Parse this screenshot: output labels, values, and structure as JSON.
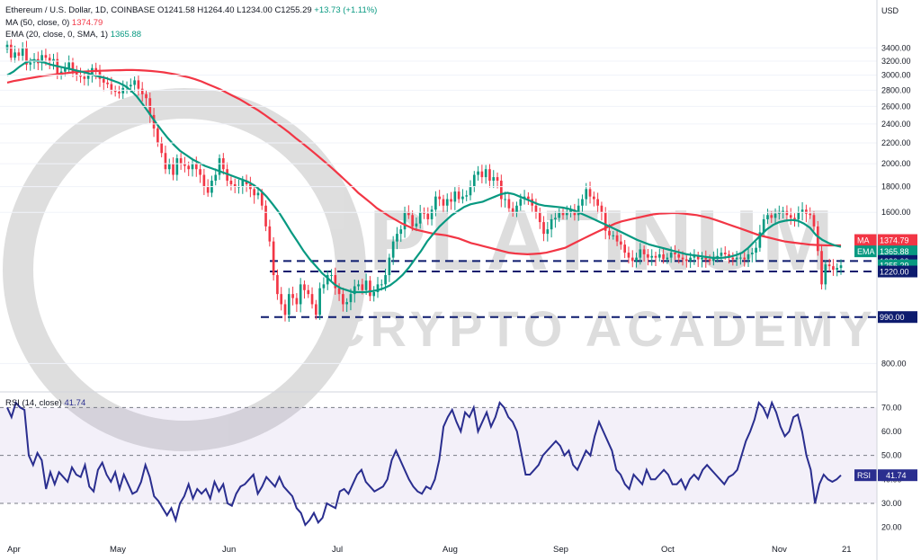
{
  "header": {
    "symbol_line": "Ethereum / U.S. Dollar, 1D, COINBASE",
    "open": "O1241.58",
    "high": "H1264.40",
    "low": "L1234.00",
    "close": "C1255.29",
    "change": "+13.73 (+1.11%)",
    "ma_label": "MA (50, close, 0)",
    "ma_value": "1374.79",
    "ema_label": "EMA (20, close, 0, SMA, 1)",
    "ema_value": "1365.88",
    "rsi_label": "RSI (14, close)",
    "rsi_value": "41.74"
  },
  "watermark": {
    "line1": "PLATINUM",
    "line2": "CRYPTO ACADEMY"
  },
  "colors": {
    "ma": "#f23645",
    "ema": "#089981",
    "rsi": "#2a2e8f",
    "level": "#0d1b6e",
    "candle_up": "#089981",
    "candle_down": "#f23645"
  },
  "chart_data": [
    {
      "type": "candlestick",
      "title": "Ethereum / U.S. Dollar, 1D, COINBASE",
      "currency": "USD",
      "y_scale": "log",
      "ylim": [
        720,
        3900
      ],
      "y_ticks": [
        "3400.00",
        "3200.00",
        "3000.00",
        "2800.00",
        "2600.00",
        "2400.00",
        "2200.00",
        "2000.00",
        "1800.00",
        "1600.00",
        "800.00"
      ],
      "x_ticks": [
        "Apr",
        "May",
        "Jun",
        "Jul",
        "Aug",
        "Sep",
        "Oct",
        "Nov",
        "21"
      ],
      "close_series": [
        3450,
        3250,
        3330,
        3280,
        3400,
        3150,
        3180,
        3230,
        3170,
        3290,
        3250,
        3200,
        3230,
        3000,
        3050,
        3100,
        3180,
        3050,
        3000,
        2980,
        2950,
        3000,
        3100,
        3050,
        2950,
        2900,
        2880,
        2800,
        2780,
        2760,
        2830,
        2850,
        2870,
        2930,
        2820,
        2750,
        2700,
        2500,
        2350,
        2200,
        2100,
        1950,
        2000,
        1900,
        2050,
        2000,
        1980,
        1950,
        2000,
        1950,
        1900,
        1800,
        1750,
        1850,
        1900,
        2050,
        1950,
        1850,
        1820,
        1800,
        1800,
        1850,
        1820,
        1780,
        1730,
        1750,
        1650,
        1500,
        1400,
        1200,
        1100,
        1050,
        1000,
        1100,
        1080,
        1050,
        1150,
        1120,
        1100,
        1050,
        1000,
        1130,
        1150,
        1200,
        1200,
        1130,
        1100,
        1050,
        1060,
        1100,
        1140,
        1150,
        1120,
        1170,
        1090,
        1110,
        1150,
        1150,
        1200,
        1300,
        1400,
        1450,
        1480,
        1600,
        1580,
        1500,
        1520,
        1600,
        1590,
        1550,
        1620,
        1720,
        1700,
        1650,
        1700,
        1680,
        1760,
        1700,
        1720,
        1730,
        1800,
        1900,
        1930,
        1880,
        1950,
        1850,
        1880,
        1850,
        1700,
        1700,
        1630,
        1600,
        1650,
        1700,
        1720,
        1700,
        1650,
        1600,
        1530,
        1450,
        1480,
        1550,
        1560,
        1600,
        1580,
        1600,
        1620,
        1580,
        1650,
        1700,
        1780,
        1720,
        1700,
        1650,
        1600,
        1470,
        1440,
        1440,
        1400,
        1380,
        1330,
        1300,
        1280,
        1300,
        1350,
        1320,
        1300,
        1310,
        1300,
        1320,
        1290,
        1300,
        1330,
        1320,
        1300,
        1290,
        1280,
        1300,
        1310,
        1290,
        1300,
        1290,
        1280,
        1300,
        1310,
        1330,
        1320,
        1300,
        1290,
        1300,
        1300,
        1290,
        1320,
        1330,
        1360,
        1460,
        1550,
        1580,
        1560,
        1590,
        1600,
        1610,
        1580,
        1560,
        1550,
        1600,
        1620,
        1590,
        1580,
        1500,
        1340,
        1150,
        1260,
        1250,
        1230,
        1240,
        1255
      ],
      "series": [
        {
          "name": "MA",
          "label": "MA (50, close, 0)",
          "last": 1374.79,
          "values": [
            2900,
            2920,
            2935,
            2950,
            2965,
            2980,
            2995,
            3005,
            3015,
            3025,
            3035,
            3045,
            3050,
            3055,
            3058,
            3062,
            3065,
            3068,
            3070,
            3072,
            3074,
            3070,
            3065,
            3058,
            3050,
            3040,
            3025,
            3010,
            2990,
            2970,
            2945,
            2915,
            2880,
            2845,
            2810,
            2770,
            2730,
            2690,
            2645,
            2600,
            2555,
            2505,
            2455,
            2405,
            2355,
            2305,
            2250,
            2200,
            2150,
            2100,
            2050,
            2000,
            1950,
            1900,
            1850,
            1800,
            1750,
            1710,
            1670,
            1630,
            1600,
            1570,
            1545,
            1520,
            1500,
            1480,
            1470,
            1460,
            1450,
            1445,
            1440,
            1430,
            1420,
            1405,
            1390,
            1380,
            1370,
            1360,
            1350,
            1340,
            1330,
            1325,
            1322,
            1320,
            1322,
            1325,
            1330,
            1340,
            1350,
            1360,
            1380,
            1400,
            1420,
            1440,
            1460,
            1480,
            1500,
            1520,
            1535,
            1545,
            1555,
            1565,
            1575,
            1585,
            1590,
            1592,
            1595,
            1595,
            1590,
            1585,
            1580,
            1570,
            1560,
            1545,
            1530,
            1515,
            1500,
            1485,
            1470,
            1455,
            1440,
            1430,
            1420,
            1410,
            1400,
            1395,
            1390,
            1385,
            1380,
            1378,
            1376,
            1375,
            1375,
            1374.79
          ]
        },
        {
          "name": "EMA",
          "label": "EMA (20, close, 0, SMA, 1)",
          "last": 1365.88,
          "values": [
            3000,
            3050,
            3120,
            3180,
            3210,
            3200,
            3180,
            3150,
            3130,
            3110,
            3090,
            3070,
            3050,
            3030,
            3000,
            2980,
            2960,
            2930,
            2900,
            2860,
            2800,
            2720,
            2620,
            2520,
            2420,
            2330,
            2250,
            2180,
            2120,
            2080,
            2040,
            2010,
            1980,
            1960,
            1940,
            1920,
            1900,
            1880,
            1860,
            1840,
            1810,
            1770,
            1720,
            1660,
            1600,
            1530,
            1460,
            1400,
            1340,
            1290,
            1250,
            1210,
            1180,
            1150,
            1130,
            1120,
            1110,
            1110,
            1110,
            1115,
            1120,
            1130,
            1145,
            1170,
            1200,
            1240,
            1290,
            1340,
            1400,
            1450,
            1500,
            1540,
            1580,
            1610,
            1640,
            1660,
            1670,
            1680,
            1700,
            1720,
            1740,
            1750,
            1740,
            1720,
            1700,
            1680,
            1660,
            1650,
            1645,
            1640,
            1635,
            1625,
            1610,
            1590,
            1570,
            1550,
            1530,
            1510,
            1490,
            1470,
            1450,
            1430,
            1410,
            1395,
            1380,
            1370,
            1360,
            1350,
            1340,
            1330,
            1320,
            1315,
            1310,
            1305,
            1300,
            1298,
            1300,
            1305,
            1315,
            1330,
            1360,
            1400,
            1440,
            1480,
            1510,
            1530,
            1540,
            1545,
            1540,
            1520,
            1490,
            1440,
            1410,
            1390,
            1375,
            1365.88
          ]
        }
      ],
      "price_labels": [
        {
          "tag": "MA",
          "value": "1374.79"
        },
        {
          "tag": "EMA",
          "value": "1365.88"
        },
        {
          "tag": "",
          "value": "1280.00"
        },
        {
          "tag": "",
          "value": "1255.29"
        },
        {
          "tag": "",
          "value": "1220.00"
        },
        {
          "tag": "",
          "value": "990.00"
        }
      ],
      "levels": [
        {
          "value": 1280,
          "style": "dashed"
        },
        {
          "value": 1220,
          "style": "dashed"
        },
        {
          "value": 990,
          "style": "dashed"
        }
      ]
    },
    {
      "type": "line",
      "title": "RSI (14, close)",
      "ylim": [
        15,
        75
      ],
      "y_ticks": [
        "70.00",
        "60.00",
        "50.00",
        "40.00",
        "30.00",
        "20.00"
      ],
      "band": [
        30,
        70
      ],
      "midline": 50,
      "series": [
        {
          "name": "RSI",
          "last": 41.74,
          "values": [
            70,
            66,
            72,
            70,
            69,
            50,
            46,
            51,
            48,
            36,
            43,
            38,
            43,
            41,
            39,
            45,
            42,
            41,
            46,
            37,
            35,
            44,
            47,
            42,
            39,
            43,
            36,
            42,
            38,
            34,
            35,
            39,
            46,
            41,
            33,
            31,
            28,
            25,
            28,
            23,
            30,
            33,
            38,
            32,
            36,
            34,
            36,
            32,
            39,
            35,
            38,
            30,
            29,
            34,
            37,
            38,
            40,
            42,
            34,
            37,
            41,
            39,
            37,
            41,
            37,
            35,
            33,
            28,
            26,
            21,
            23,
            26,
            22,
            24,
            30,
            29,
            28,
            35,
            36,
            34,
            38,
            42,
            44,
            39,
            37,
            35,
            36,
            37,
            40,
            48,
            52,
            48,
            44,
            40,
            37,
            35,
            34,
            37,
            36,
            40,
            48,
            62,
            66,
            69,
            64,
            60,
            68,
            66,
            70,
            60,
            64,
            68,
            62,
            66,
            72,
            70,
            66,
            64,
            60,
            51,
            42,
            42,
            44,
            46,
            50,
            52,
            54,
            56,
            54,
            50,
            52,
            46,
            44,
            48,
            52,
            50,
            58,
            64,
            60,
            56,
            52,
            44,
            42,
            38,
            36,
            42,
            40,
            38,
            44,
            40,
            40,
            42,
            44,
            42,
            38,
            38,
            40,
            36,
            40,
            42,
            40,
            44,
            46,
            44,
            42,
            40,
            38,
            41,
            42,
            44,
            50,
            56,
            60,
            65,
            72,
            70,
            66,
            72,
            68,
            62,
            58,
            60,
            66,
            67,
            60,
            50,
            44,
            30,
            38,
            42,
            40,
            39,
            40,
            41.74
          ]
        }
      ]
    }
  ]
}
